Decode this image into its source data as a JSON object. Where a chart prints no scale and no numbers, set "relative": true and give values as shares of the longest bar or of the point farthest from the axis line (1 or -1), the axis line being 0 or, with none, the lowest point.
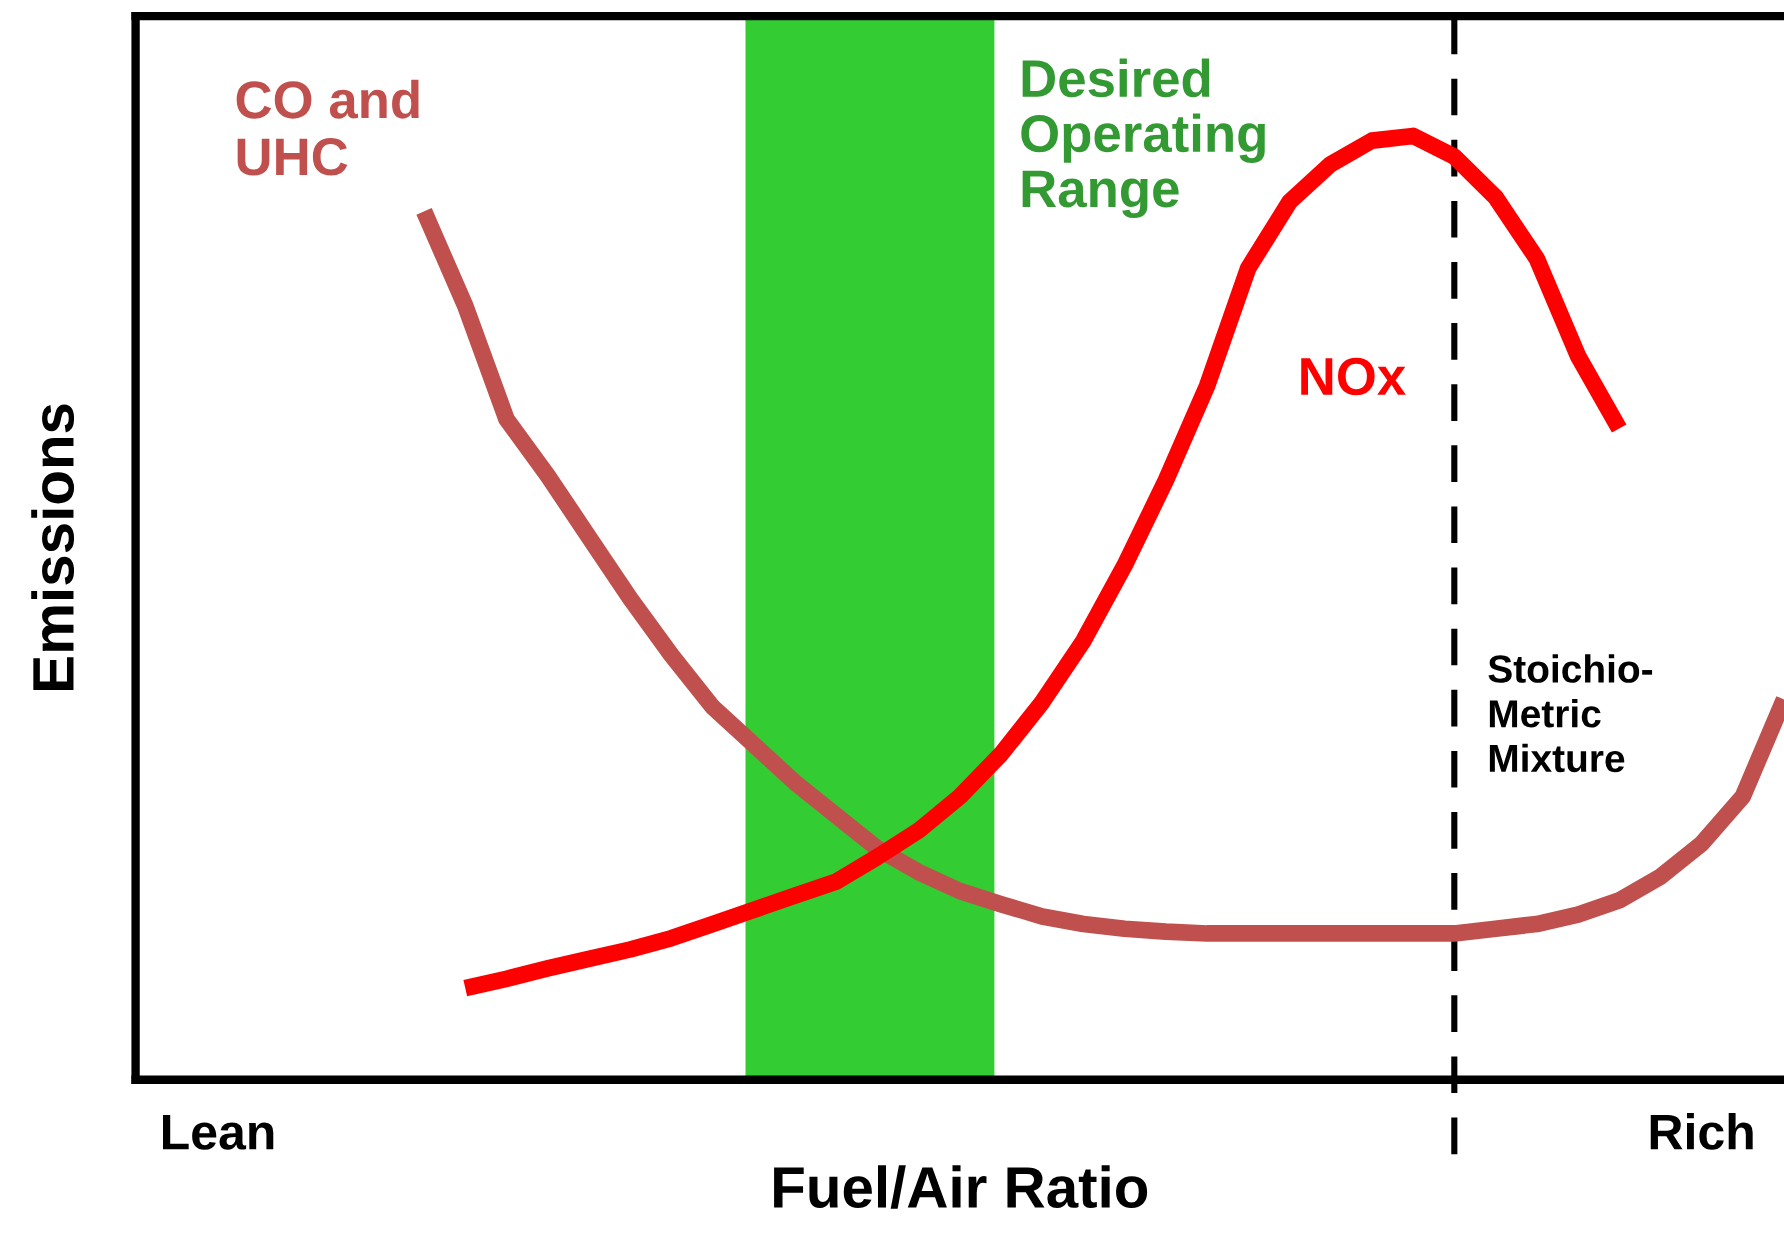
{
  "chart_data": {
    "type": "line",
    "relative": true,
    "xlabel": "Fuel/Air Ratio",
    "ylabel": "Emissions",
    "legend": false,
    "marker": "none",
    "line_style": "solid",
    "categories": [
      null,
      null,
      "Lean",
      null,
      null,
      null,
      null,
      null,
      null,
      null,
      null,
      null,
      null,
      null,
      null,
      null,
      null,
      null,
      null,
      null,
      null,
      null,
      null,
      null,
      null,
      null,
      null,
      null,
      null,
      null,
      null,
      null,
      null,
      null,
      null,
      null,
      null,
      null,
      "Rich",
      null,
      null
    ],
    "series": [
      {
        "name": "CO and\nUHC",
        "color": "#c0504d",
        "values": [
          null,
          null,
          null,
          null,
          null,
          null,
          null,
          0.92,
          0.82,
          0.7,
          0.64,
          0.575,
          0.51,
          0.45,
          0.395,
          0.355,
          0.315,
          0.28,
          0.245,
          0.22,
          0.2,
          0.186,
          0.173,
          0.165,
          0.16,
          0.157,
          0.155,
          0.155,
          0.155,
          0.155,
          0.155,
          0.155,
          0.155,
          0.16,
          0.165,
          0.175,
          0.19,
          0.215,
          0.25,
          0.3,
          0.403
        ]
      },
      {
        "name": "NOx",
        "color": "#ff0000",
        "values": [
          null,
          null,
          null,
          null,
          null,
          null,
          null,
          null,
          0.097,
          0.107,
          0.118,
          0.128,
          0.138,
          0.15,
          0.165,
          0.18,
          0.195,
          0.21,
          0.236,
          0.264,
          0.3,
          0.345,
          0.4,
          0.465,
          0.545,
          0.635,
          0.735,
          0.86,
          0.93,
          0.97,
          0.995,
          1.0,
          0.978,
          0.935,
          0.87,
          0.767,
          0.69,
          null,
          null,
          null,
          null
        ]
      }
    ],
    "annotations": [
      "Desired\nOperating\nRange",
      "Stoichio-\nMetric\nMixture"
    ]
  }
}
